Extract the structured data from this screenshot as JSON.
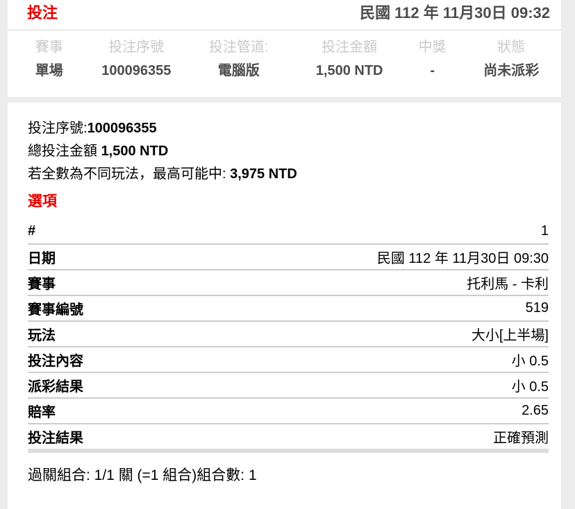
{
  "header": {
    "title": "投注",
    "timestamp": "民國 112 年 11月30日 09:32"
  },
  "summary": {
    "columns": [
      {
        "label": "賽事",
        "value": "單場"
      },
      {
        "label": "投注序號",
        "value": "100096355"
      },
      {
        "label": "投注管道:",
        "value": "電腦版"
      },
      {
        "label": "投注金額",
        "value": "1,500 NTD"
      },
      {
        "label": "中獎",
        "value": "-"
      },
      {
        "label": "狀態",
        "value": "尚未派彩"
      }
    ]
  },
  "details": {
    "serial_label": "投注序號:",
    "serial_value": "100096355",
    "total_label": "總投注金額 ",
    "total_value": "1,500 NTD",
    "max_win_label": "若全數為不同玩法，最高可能中: ",
    "max_win_value": "3,975 NTD",
    "options_title": "選項",
    "rows": [
      {
        "label": "#",
        "value": "1"
      },
      {
        "label": "日期",
        "value": "民國 112 年 11月30日 09:30"
      },
      {
        "label": "賽事",
        "value": "托利馬 - 卡利"
      },
      {
        "label": "賽事編號",
        "value": "519"
      },
      {
        "label": "玩法",
        "value": "大小[上半場]"
      },
      {
        "label": "投注內容",
        "value": "小 0.5"
      },
      {
        "label": "派彩結果",
        "value": "小 0.5"
      },
      {
        "label": "賠率",
        "value": "2.65"
      },
      {
        "label": "投注結果",
        "value": "正確預測"
      }
    ],
    "combo_text": "過關組合: 1/1 關 (=1 組合)組合數: 1"
  },
  "colors": {
    "accent_red": "#e60000",
    "muted_header_text": "#c9c9c9",
    "summary_value_text": "#4c4c4c",
    "page_background": "#ededed",
    "row_divider": "#cccccc",
    "table_footer_bar": "#dcdcdc"
  }
}
